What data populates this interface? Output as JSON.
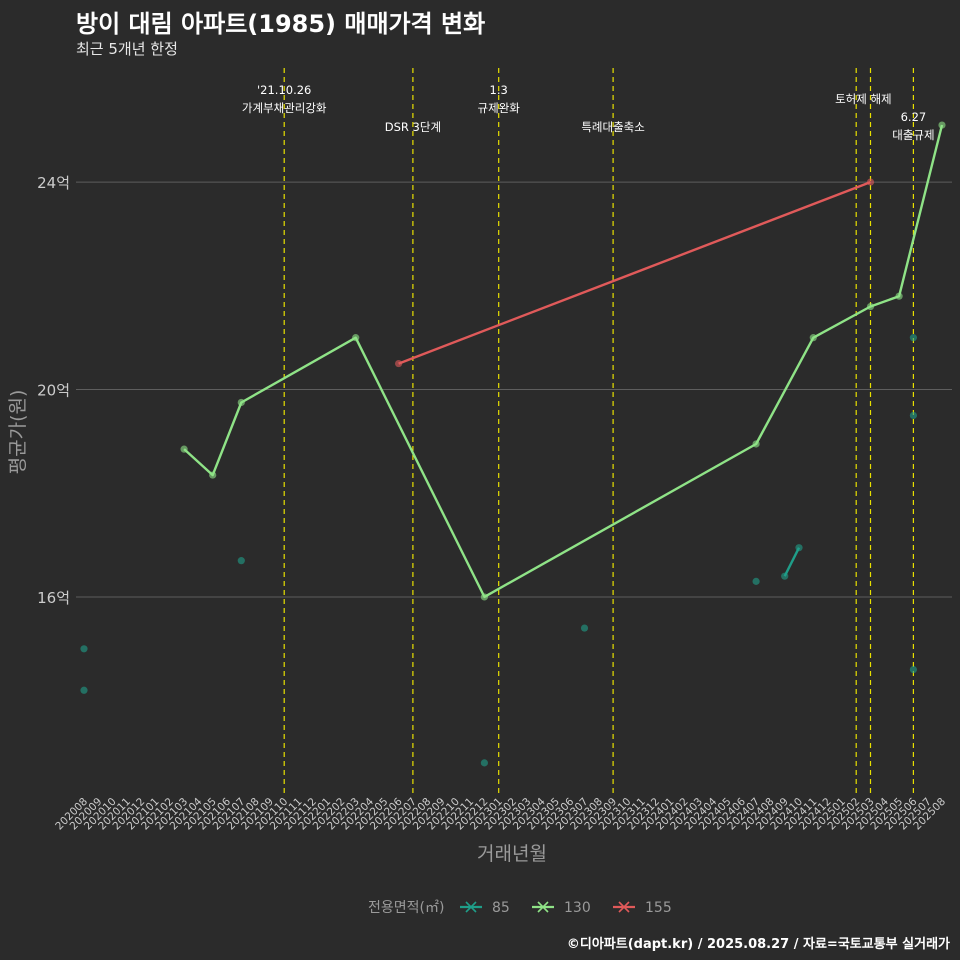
{
  "title": "방이 대림 아파트(1985) 매매가격 변화",
  "subtitle": "최근 5개년 한정",
  "caption": "©디아파트(dapt.kr) / 2025.08.27 / 자료=국토교통부 실거래가",
  "chart_data": {
    "type": "line",
    "xlabel": "거래년월",
    "ylabel": "평균가(원)",
    "categories": [
      "202008",
      "202009",
      "202010",
      "202011",
      "202012",
      "202101",
      "202102",
      "202103",
      "202104",
      "202105",
      "202106",
      "202107",
      "202108",
      "202109",
      "202110",
      "202111",
      "202112",
      "202201",
      "202202",
      "202203",
      "202204",
      "202205",
      "202206",
      "202207",
      "202208",
      "202209",
      "202210",
      "202211",
      "202212",
      "202301",
      "202302",
      "202303",
      "202304",
      "202305",
      "202306",
      "202307",
      "202308",
      "202309",
      "202310",
      "202311",
      "202312",
      "202401",
      "202402",
      "202403",
      "202404",
      "202405",
      "202406",
      "202407",
      "202408",
      "202409",
      "202410",
      "202411",
      "202412",
      "202501",
      "202502",
      "202503",
      "202504",
      "202505",
      "202506",
      "202507",
      "202508"
    ],
    "y_ticks": [
      {
        "value": 16,
        "label": "16억"
      },
      {
        "value": 20,
        "label": "20억"
      },
      {
        "value": 24,
        "label": "24억"
      }
    ],
    "ylim": [
      12.2,
      26.2
    ],
    "grid": "horizontal",
    "legend": {
      "title": "전용면적(㎡)",
      "position": "bottom"
    },
    "series": [
      {
        "name": "85",
        "color": "#1f9e89",
        "points": [
          [
            "202008",
            15.0
          ],
          [
            "202008",
            14.2
          ],
          [
            "202107",
            16.7
          ],
          [
            "202212",
            12.8
          ],
          [
            "202307",
            15.4
          ],
          [
            "202407",
            16.3
          ],
          [
            "202409",
            16.4
          ],
          [
            "202410",
            16.95
          ],
          [
            "202506",
            21.0
          ],
          [
            "202506",
            19.5
          ],
          [
            "202506",
            14.6
          ]
        ],
        "line": [
          [
            "202409",
            16.4
          ],
          [
            "202410",
            16.95
          ]
        ]
      },
      {
        "name": "130",
        "color": "#8fe387",
        "points": [
          [
            "202103",
            18.85
          ],
          [
            "202105",
            18.35
          ],
          [
            "202107",
            19.75
          ],
          [
            "202203",
            21.0
          ],
          [
            "202212",
            16.0
          ],
          [
            "202407",
            18.95
          ],
          [
            "202411",
            21.0
          ],
          [
            "202503",
            21.6
          ],
          [
            "202505",
            21.8
          ],
          [
            "202508",
            25.1
          ]
        ],
        "line": [
          [
            "202103",
            18.85
          ],
          [
            "202105",
            18.35
          ],
          [
            "202107",
            19.75
          ],
          [
            "202203",
            21.0
          ],
          [
            "202212",
            16.0
          ],
          [
            "202407",
            18.95
          ],
          [
            "202411",
            21.0
          ],
          [
            "202503",
            21.6
          ],
          [
            "202505",
            21.8
          ],
          [
            "202508",
            25.1
          ]
        ]
      },
      {
        "name": "155",
        "color": "#e05a5a",
        "points": [
          [
            "202206",
            20.5
          ],
          [
            "202503",
            24.0
          ]
        ],
        "line": [
          [
            "202206",
            20.5
          ],
          [
            "202503",
            24.0
          ]
        ]
      }
    ],
    "annotations": [
      {
        "x": "202110",
        "lines": [
          "'21.10.26",
          "가계부채관리강화"
        ],
        "level": 1
      },
      {
        "x": "202207",
        "lines": [
          "DSR 3단계"
        ],
        "level": 3
      },
      {
        "x": "202301",
        "lines": [
          "1.3",
          "규제완화"
        ],
        "level": 1
      },
      {
        "x": "202309",
        "lines": [
          "특례대출축소"
        ],
        "level": 3
      },
      {
        "x": "202502",
        "lines": [
          "토허제 해제"
        ],
        "level": 2,
        "anchor_x": "202503"
      },
      {
        "x": "202503",
        "lines": [],
        "level": 0
      },
      {
        "x": "202506",
        "lines": [
          "6.27",
          "대출규제"
        ],
        "level": 4
      }
    ]
  }
}
